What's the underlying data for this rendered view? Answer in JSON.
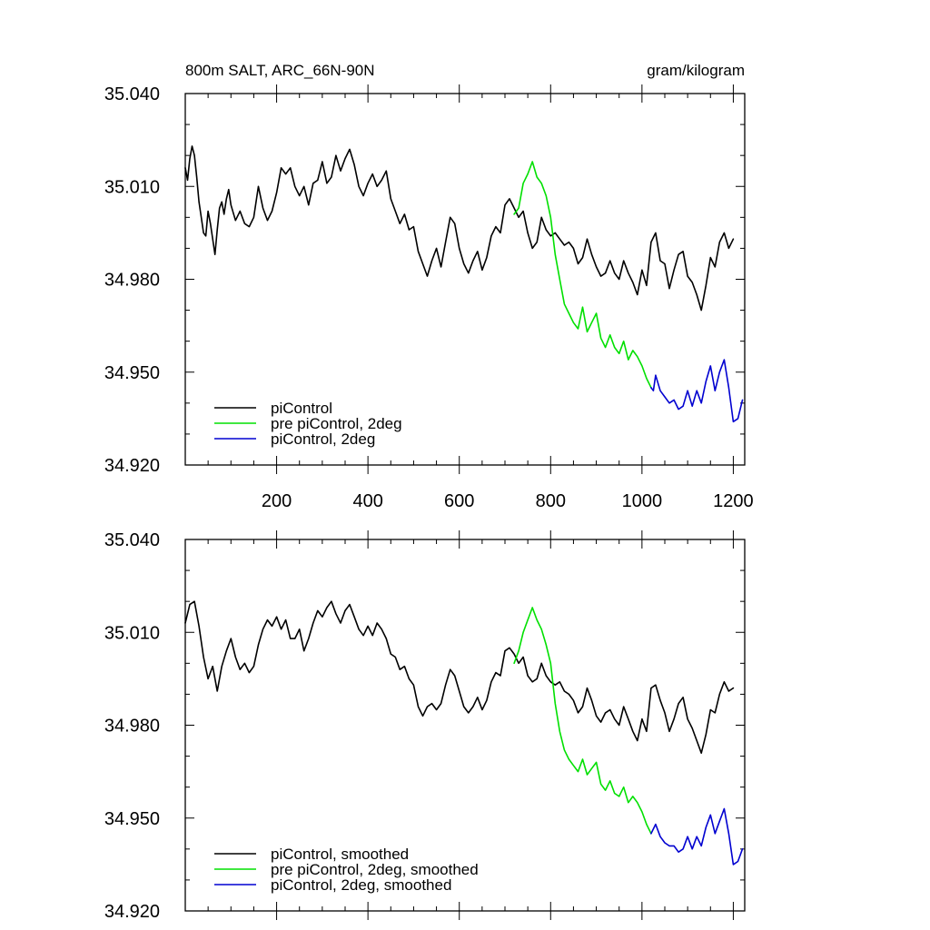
{
  "figure": {
    "left_title": "800m SALT, ARC_66N-90N",
    "right_title": "gram/kilogram"
  },
  "chart_data": [
    {
      "type": "line",
      "title": "800m SALT, ARC_66N-90N",
      "units": "gram/kilogram",
      "xlim": [
        0,
        1225
      ],
      "ylim": [
        34.92,
        35.04
      ],
      "xticks": [
        200,
        400,
        600,
        800,
        1000,
        1200
      ],
      "xtick_labels": [
        "200",
        "400",
        "600",
        "800",
        "1000",
        "1200"
      ],
      "yticks": [
        34.92,
        34.95,
        34.98,
        35.01,
        35.04
      ],
      "ytick_labels": [
        "34.920",
        "34.950",
        "34.980",
        "35.010",
        "35.040"
      ],
      "grid": false,
      "legend_position": "bottom-left",
      "series": [
        {
          "name": "piControl",
          "color": "#000000",
          "x": [
            0,
            5,
            10,
            15,
            20,
            25,
            30,
            35,
            40,
            45,
            50,
            55,
            60,
            65,
            70,
            75,
            80,
            85,
            90,
            95,
            100,
            110,
            120,
            130,
            140,
            150,
            160,
            170,
            180,
            190,
            200,
            210,
            220,
            230,
            240,
            250,
            260,
            270,
            280,
            290,
            300,
            310,
            320,
            330,
            340,
            350,
            360,
            370,
            380,
            390,
            400,
            410,
            420,
            430,
            440,
            450,
            460,
            470,
            480,
            490,
            500,
            510,
            520,
            530,
            540,
            550,
            560,
            570,
            580,
            590,
            600,
            610,
            620,
            630,
            640,
            650,
            660,
            670,
            680,
            690,
            700,
            710,
            720,
            730,
            740,
            750,
            760,
            770,
            780,
            790,
            800,
            810,
            820,
            830,
            840,
            850,
            860,
            870,
            880,
            890,
            900,
            910,
            920,
            930,
            940,
            950,
            960,
            970,
            980,
            990,
            1000,
            1010,
            1020,
            1030,
            1040,
            1050,
            1060,
            1070,
            1080,
            1090,
            1100,
            1110,
            1120,
            1130,
            1140,
            1150,
            1160,
            1170,
            1180,
            1190,
            1200
          ],
          "values": [
            35.016,
            35.012,
            35.019,
            35.023,
            35.02,
            35.013,
            35.005,
            35.0,
            34.995,
            34.994,
            35.002,
            34.998,
            34.993,
            34.988,
            34.996,
            35.003,
            35.005,
            35.001,
            35.006,
            35.009,
            35.004,
            34.999,
            35.002,
            34.998,
            34.997,
            35.0,
            35.01,
            35.003,
            34.999,
            35.002,
            35.008,
            35.016,
            35.014,
            35.016,
            35.01,
            35.007,
            35.01,
            35.004,
            35.011,
            35.012,
            35.018,
            35.011,
            35.013,
            35.02,
            35.015,
            35.019,
            35.022,
            35.017,
            35.01,
            35.007,
            35.011,
            35.014,
            35.01,
            35.012,
            35.015,
            35.006,
            35.002,
            34.998,
            35.001,
            34.996,
            34.997,
            34.989,
            34.985,
            34.981,
            34.986,
            34.99,
            34.984,
            34.992,
            35.0,
            34.998,
            34.99,
            34.985,
            34.982,
            34.986,
            34.989,
            34.983,
            34.987,
            34.994,
            34.997,
            34.995,
            35.004,
            35.006,
            35.003,
            35.0,
            35.002,
            34.995,
            34.99,
            34.992,
            35.0,
            34.996,
            34.994,
            34.995,
            34.993,
            34.991,
            34.992,
            34.99,
            34.985,
            34.987,
            34.993,
            34.988,
            34.984,
            34.981,
            34.982,
            34.986,
            34.982,
            34.98,
            34.986,
            34.982,
            34.979,
            34.975,
            34.983,
            34.978,
            34.992,
            34.995,
            34.986,
            34.985,
            34.977,
            34.983,
            34.988,
            34.989,
            34.981,
            34.979,
            34.975,
            34.97,
            34.978,
            34.987,
            34.984,
            34.992,
            34.995,
            34.99,
            34.993
          ],
          "note_unused": ""
        },
        {
          "name": "pre piControl, 2deg",
          "color": "#00e000",
          "x": [
            720,
            730,
            740,
            750,
            760,
            770,
            780,
            790,
            800,
            810,
            820,
            830,
            840,
            850,
            860,
            870,
            880,
            890,
            900,
            910,
            920,
            930,
            940,
            950,
            960,
            970,
            980,
            990,
            1000,
            1010,
            1020
          ],
          "values": [
            35.001,
            35.003,
            35.011,
            35.014,
            35.018,
            35.013,
            35.011,
            35.007,
            35.0,
            34.988,
            34.98,
            34.972,
            34.969,
            34.966,
            34.964,
            34.971,
            34.963,
            34.966,
            34.969,
            34.961,
            34.958,
            34.962,
            34.958,
            34.956,
            34.96,
            34.954,
            34.957,
            34.955,
            34.952,
            34.948,
            34.945
          ]
        },
        {
          "name": "piControl, 2deg",
          "color": "#0000d0",
          "x": [
            1020,
            1025,
            1030,
            1040,
            1050,
            1060,
            1070,
            1080,
            1090,
            1100,
            1110,
            1120,
            1130,
            1140,
            1150,
            1160,
            1170,
            1180,
            1190,
            1200,
            1210,
            1220
          ],
          "values": [
            34.945,
            34.944,
            34.949,
            34.944,
            34.942,
            34.94,
            34.941,
            34.938,
            34.939,
            34.944,
            34.939,
            34.944,
            34.94,
            34.947,
            34.952,
            34.944,
            34.95,
            34.954,
            34.945,
            34.934,
            34.935,
            34.941
          ]
        }
      ]
    },
    {
      "type": "line",
      "xlim": [
        0,
        1225
      ],
      "ylim": [
        34.92,
        35.04
      ],
      "xticks": [
        200,
        400,
        600,
        800,
        1000,
        1200
      ],
      "yticks": [
        34.92,
        34.95,
        34.98,
        35.01,
        35.04
      ],
      "ytick_labels": [
        "34.920",
        "34.950",
        "34.980",
        "35.010",
        "35.040"
      ],
      "grid": false,
      "legend_position": "bottom-left",
      "series": [
        {
          "name": "piControl, smoothed",
          "color": "#000000",
          "x": [
            0,
            10,
            20,
            30,
            40,
            50,
            60,
            70,
            80,
            90,
            100,
            110,
            120,
            130,
            140,
            150,
            160,
            170,
            180,
            190,
            200,
            210,
            220,
            230,
            240,
            250,
            260,
            270,
            280,
            290,
            300,
            310,
            320,
            330,
            340,
            350,
            360,
            370,
            380,
            390,
            400,
            410,
            420,
            430,
            440,
            450,
            460,
            470,
            480,
            490,
            500,
            510,
            520,
            530,
            540,
            550,
            560,
            570,
            580,
            590,
            600,
            610,
            620,
            630,
            640,
            650,
            660,
            670,
            680,
            690,
            700,
            710,
            720,
            730,
            740,
            750,
            760,
            770,
            780,
            790,
            800,
            810,
            820,
            830,
            840,
            850,
            860,
            870,
            880,
            890,
            900,
            910,
            920,
            930,
            940,
            950,
            960,
            970,
            980,
            990,
            1000,
            1010,
            1020,
            1030,
            1040,
            1050,
            1060,
            1070,
            1080,
            1090,
            1100,
            1110,
            1120,
            1130,
            1140,
            1150,
            1160,
            1170,
            1180,
            1190,
            1200
          ],
          "values": [
            35.013,
            35.019,
            35.02,
            35.012,
            35.002,
            34.995,
            34.999,
            34.991,
            34.999,
            35.004,
            35.008,
            35.002,
            34.998,
            35.0,
            34.997,
            34.999,
            35.006,
            35.011,
            35.014,
            35.012,
            35.015,
            35.011,
            35.014,
            35.008,
            35.008,
            35.011,
            35.004,
            35.008,
            35.013,
            35.017,
            35.015,
            35.018,
            35.02,
            35.016,
            35.013,
            35.017,
            35.019,
            35.015,
            35.011,
            35.009,
            35.012,
            35.009,
            35.013,
            35.011,
            35.008,
            35.003,
            35.002,
            34.998,
            34.999,
            34.995,
            34.993,
            34.986,
            34.983,
            34.986,
            34.987,
            34.985,
            34.987,
            34.993,
            34.998,
            34.996,
            34.991,
            34.986,
            34.984,
            34.986,
            34.989,
            34.985,
            34.988,
            34.994,
            34.997,
            34.996,
            35.004,
            35.005,
            35.003,
            35.0,
            35.002,
            34.996,
            34.994,
            34.995,
            35.0,
            34.996,
            34.994,
            34.993,
            34.994,
            34.991,
            34.99,
            34.988,
            34.984,
            34.986,
            34.992,
            34.988,
            34.983,
            34.981,
            34.984,
            34.985,
            34.982,
            34.98,
            34.986,
            34.982,
            34.978,
            34.975,
            34.982,
            34.978,
            34.992,
            34.993,
            34.988,
            34.984,
            34.978,
            34.982,
            34.987,
            34.989,
            34.982,
            34.979,
            34.975,
            34.971,
            34.977,
            34.985,
            34.984,
            34.99,
            34.994,
            34.991,
            34.992
          ]
        },
        {
          "name": "pre piControl, 2deg, smoothed",
          "color": "#00e000",
          "x": [
            720,
            730,
            740,
            750,
            760,
            770,
            780,
            790,
            800,
            810,
            820,
            830,
            840,
            850,
            860,
            870,
            880,
            890,
            900,
            910,
            920,
            930,
            940,
            950,
            960,
            970,
            980,
            990,
            1000,
            1010,
            1020
          ],
          "values": [
            35.0,
            35.004,
            35.01,
            35.014,
            35.018,
            35.014,
            35.011,
            35.006,
            35.0,
            34.987,
            34.978,
            34.972,
            34.969,
            34.967,
            34.965,
            34.969,
            34.964,
            34.966,
            34.968,
            34.961,
            34.959,
            34.962,
            34.958,
            34.957,
            34.96,
            34.955,
            34.957,
            34.955,
            34.952,
            34.948,
            34.945
          ]
        },
        {
          "name": "piControl, 2deg, smoothed",
          "color": "#0000d0",
          "x": [
            1020,
            1030,
            1040,
            1050,
            1060,
            1070,
            1080,
            1090,
            1100,
            1110,
            1120,
            1130,
            1140,
            1150,
            1160,
            1170,
            1180,
            1190,
            1200,
            1210,
            1220
          ],
          "values": [
            34.945,
            34.948,
            34.944,
            34.942,
            34.941,
            34.941,
            34.939,
            34.94,
            34.944,
            34.94,
            34.944,
            34.941,
            34.947,
            34.951,
            34.945,
            34.949,
            34.953,
            34.945,
            34.935,
            34.936,
            34.94
          ]
        }
      ]
    }
  ]
}
